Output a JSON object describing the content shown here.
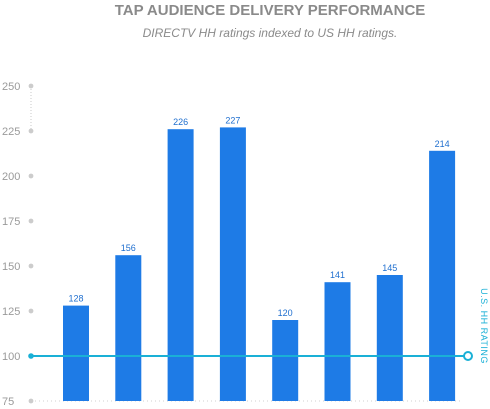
{
  "chart_data": {
    "type": "bar",
    "title": "TAP AUDIENCE DELIVERY PERFORMANCE",
    "subtitle": "DIRECTV HH ratings indexed to US HH ratings.",
    "xlabel": "",
    "ylabel": "",
    "ylim": [
      75,
      250
    ],
    "yticks": [
      250,
      225,
      200,
      175,
      150,
      125,
      100,
      75
    ],
    "categories": [
      "",
      "",
      "",
      "",
      "",
      "",
      "",
      ""
    ],
    "values": [
      128,
      156,
      226,
      227,
      120,
      141,
      145,
      214
    ],
    "data_labels": [
      "128",
      "156",
      "226",
      "227",
      "120",
      "141",
      "145",
      "214"
    ],
    "reference_line": {
      "value": 100,
      "label": "U.S. HH RATING",
      "color": "#1ab0d6"
    },
    "bar_color": "#1e7be6",
    "grid": false,
    "legend": "none"
  }
}
